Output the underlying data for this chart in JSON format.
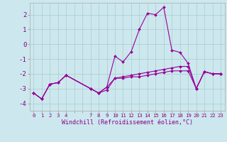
{
  "xlabel": "Windchill (Refroidissement éolien,°C)",
  "background_color": "#cce8ee",
  "grid_color": "#aacccc",
  "line_color": "#990099",
  "xlim": [
    -0.5,
    23.5
  ],
  "ylim": [
    -4.5,
    2.8
  ],
  "yticks": [
    -4,
    -3,
    -2,
    -1,
    0,
    1,
    2
  ],
  "xticks": [
    0,
    1,
    2,
    3,
    4,
    5,
    6,
    7,
    8,
    9,
    10,
    11,
    12,
    13,
    14,
    15,
    16,
    17,
    18,
    19,
    20,
    21,
    22,
    23
  ],
  "xtick_labels": [
    "0",
    "1",
    "2",
    "3",
    "4",
    "",
    "",
    "7",
    "8",
    "9",
    "10",
    "11",
    "12",
    "13",
    "14",
    "15",
    "16",
    "17",
    "18",
    "19",
    "20",
    "21",
    "22",
    "23"
  ],
  "series": [
    {
      "x": [
        0,
        1,
        2,
        3,
        4,
        7,
        8,
        9,
        10,
        11,
        12,
        13,
        14,
        15,
        16,
        17,
        18,
        19,
        20,
        21,
        22,
        23
      ],
      "y": [
        -3.3,
        -3.7,
        -2.7,
        -2.6,
        -2.1,
        -3.0,
        -3.3,
        -3.1,
        -2.3,
        -2.3,
        -2.2,
        -2.2,
        -2.1,
        -2.0,
        -1.9,
        -1.8,
        -1.8,
        -1.8,
        -3.0,
        -1.85,
        -2.0,
        -2.0
      ]
    },
    {
      "x": [
        0,
        1,
        2,
        3,
        4,
        7,
        8,
        9,
        10,
        11,
        12,
        13,
        14,
        15,
        16,
        17,
        18,
        19,
        20,
        21,
        22,
        23
      ],
      "y": [
        -3.3,
        -3.7,
        -2.7,
        -2.6,
        -2.1,
        -3.0,
        -3.3,
        -2.9,
        -0.8,
        -1.2,
        -0.5,
        1.0,
        2.1,
        2.0,
        2.5,
        -0.4,
        -0.55,
        -1.3,
        -3.0,
        -1.85,
        -2.0,
        -2.0
      ]
    },
    {
      "x": [
        0,
        1,
        2,
        3,
        4,
        7,
        8,
        9,
        10,
        11,
        12,
        13,
        14,
        15,
        16,
        17,
        18,
        19,
        20,
        21,
        22,
        23
      ],
      "y": [
        -3.3,
        -3.7,
        -2.7,
        -2.6,
        -2.1,
        -3.0,
        -3.3,
        -2.9,
        -2.3,
        -2.2,
        -2.1,
        -2.0,
        -1.9,
        -1.8,
        -1.7,
        -1.6,
        -1.5,
        -1.5,
        -3.0,
        -1.85,
        -2.0,
        -2.0
      ]
    }
  ]
}
